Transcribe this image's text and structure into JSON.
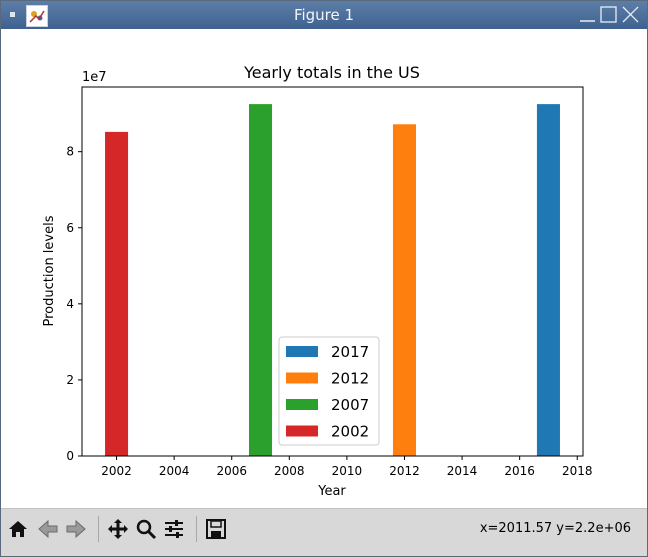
{
  "window": {
    "title": "Figure 1",
    "titlebar_color": "#4f719b"
  },
  "toolbar": {
    "buttons": [
      {
        "name": "home",
        "icon": "home-icon"
      },
      {
        "name": "back",
        "icon": "arrow-left-icon"
      },
      {
        "name": "forward",
        "icon": "arrow-right-icon"
      },
      {
        "name": "pan",
        "icon": "pan-icon"
      },
      {
        "name": "zoom",
        "icon": "zoom-icon"
      },
      {
        "name": "configure",
        "icon": "sliders-icon"
      },
      {
        "name": "save",
        "icon": "save-icon"
      }
    ],
    "coords": "x=2011.57 y=2.2e+06"
  },
  "chart_data": {
    "type": "bar",
    "title": "Yearly totals in the US",
    "xlabel": "Year",
    "ylabel": "Production levels",
    "y_offset_label": "1e7",
    "xlim": [
      2000.8,
      2018.2
    ],
    "ylim": [
      0,
      9.7
    ],
    "xticks": [
      2002,
      2004,
      2006,
      2008,
      2010,
      2012,
      2014,
      2016,
      2018
    ],
    "yticks": [
      0,
      2,
      4,
      6,
      8
    ],
    "bar_width": 0.8,
    "series": [
      {
        "name": "2017",
        "x": 2017,
        "value": 9.25,
        "color": "#1f77b4"
      },
      {
        "name": "2012",
        "x": 2012,
        "value": 8.72,
        "color": "#ff7f0e"
      },
      {
        "name": "2007",
        "x": 2007,
        "value": 9.25,
        "color": "#2ca02c"
      },
      {
        "name": "2002",
        "x": 2002,
        "value": 8.52,
        "color": "#d62728"
      }
    ],
    "legend_location": "lower center",
    "grid": false
  }
}
